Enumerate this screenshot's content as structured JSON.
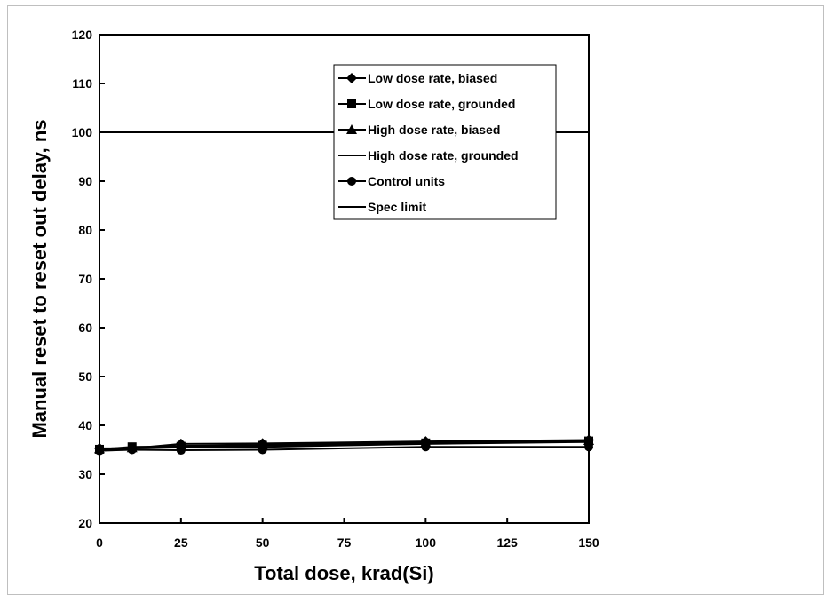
{
  "chart_data": {
    "type": "line",
    "title": "",
    "xlabel": "Total dose, krad(Si)",
    "ylabel": "Manual reset to reset out delay, ns",
    "xlim": [
      0,
      150
    ],
    "ylim": [
      20,
      120
    ],
    "xticks": [
      0,
      25,
      50,
      75,
      100,
      125,
      150
    ],
    "yticks": [
      20,
      30,
      40,
      50,
      60,
      70,
      80,
      90,
      100,
      110,
      120
    ],
    "grid": false,
    "legend_position": "top-right",
    "series": [
      {
        "name": "Low dose rate, biased",
        "marker": "diamond",
        "x": [
          0,
          10,
          25,
          50,
          100,
          150
        ],
        "y": [
          35.3,
          35.3,
          36.2,
          36.3,
          36.7,
          37.0
        ]
      },
      {
        "name": "Low dose rate, grounded",
        "marker": "square",
        "x": [
          0,
          10,
          25,
          50,
          100,
          150
        ],
        "y": [
          35.1,
          35.6,
          35.7,
          35.9,
          36.4,
          36.8
        ]
      },
      {
        "name": "High dose rate, biased",
        "marker": "triangle",
        "x": [
          0,
          10,
          25,
          50,
          100,
          150
        ],
        "y": [
          35.2,
          35.4,
          35.8,
          36.0,
          36.5,
          36.9
        ]
      },
      {
        "name": "High dose rate, grounded",
        "marker": "none",
        "x": [
          0,
          10,
          25,
          50,
          100,
          150
        ],
        "y": [
          35.0,
          35.3,
          35.5,
          35.6,
          36.2,
          36.6
        ]
      },
      {
        "name": "Control units",
        "marker": "circle",
        "x": [
          0,
          10,
          25,
          50,
          100,
          150
        ],
        "y": [
          34.8,
          35.0,
          34.9,
          35.0,
          35.6,
          35.6
        ]
      },
      {
        "name": "Spec limit",
        "marker": "none",
        "x": [
          0,
          150
        ],
        "y": [
          100,
          100
        ]
      }
    ]
  },
  "colors": {
    "line": "#000000",
    "frame": "#bfbfbf"
  }
}
